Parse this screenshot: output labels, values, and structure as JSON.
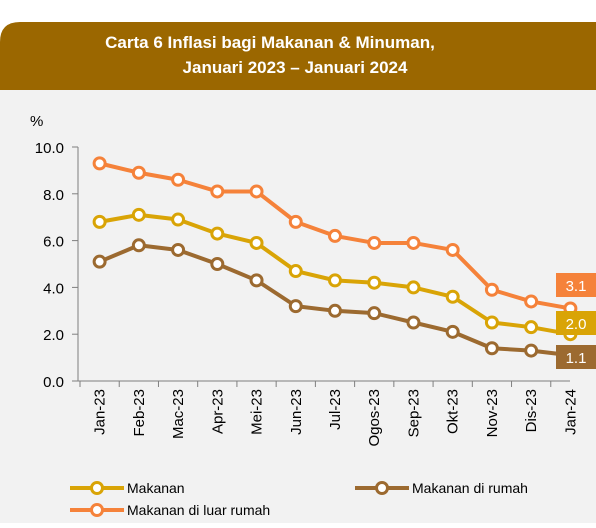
{
  "chart_data": {
    "type": "line",
    "title": [
      "Carta 6  Inflasi bagi Makanan & Minuman,",
      "Januari 2023 – Januari 2024"
    ],
    "y_label": "%",
    "categories": [
      "Jan-23",
      "Feb-23",
      "Mac-23",
      "Apr-23",
      "Mei-23",
      "Jun-23",
      "Jul-23",
      "Ogos-23",
      "Sep-23",
      "Okt-23",
      "Nov-23",
      "Dis-23",
      "Jan-24"
    ],
    "series": [
      {
        "name": "Makanan",
        "color": "#d9a406",
        "values": [
          6.8,
          7.1,
          6.9,
          6.3,
          5.9,
          4.7,
          4.3,
          4.2,
          4.0,
          3.6,
          2.5,
          2.3,
          2.0
        ],
        "value_labels": [
          null,
          null,
          null,
          null,
          null,
          null,
          null,
          null,
          null,
          null,
          null,
          null,
          "2.0"
        ]
      },
      {
        "name": "Makanan di rumah",
        "color": "#9c6a30",
        "values": [
          5.1,
          5.8,
          5.6,
          5.0,
          4.3,
          3.2,
          3.0,
          2.9,
          2.5,
          2.1,
          1.4,
          1.3,
          1.1
        ],
        "value_labels": [
          null,
          null,
          null,
          null,
          null,
          null,
          null,
          null,
          null,
          null,
          null,
          null,
          "1.1"
        ]
      },
      {
        "name": "Makanan di luar rumah",
        "color": "#f5823a",
        "values": [
          9.3,
          8.9,
          8.6,
          8.1,
          8.1,
          6.8,
          6.2,
          5.9,
          5.9,
          5.6,
          3.9,
          3.4,
          3.1
        ],
        "value_labels": [
          null,
          null,
          null,
          null,
          null,
          null,
          null,
          null,
          null,
          null,
          null,
          null,
          "3.1"
        ]
      }
    ],
    "ylim": [
      0,
      10
    ],
    "yticks": [
      {
        "value": 0,
        "label": "0.0"
      },
      {
        "value": 2,
        "label": "2.0"
      },
      {
        "value": 4,
        "label": "4.0"
      },
      {
        "value": 6,
        "label": "6.0"
      },
      {
        "value": 8,
        "label": "8.0"
      },
      {
        "value": 10,
        "label": "10.0"
      }
    ],
    "grid": false
  }
}
